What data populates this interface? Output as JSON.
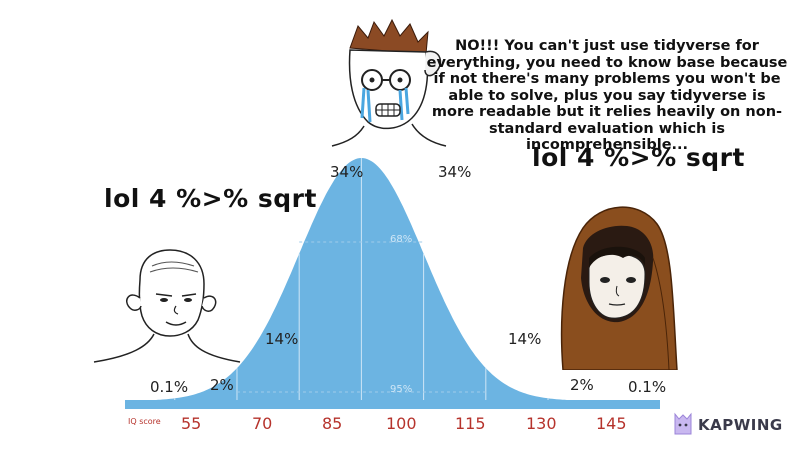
{
  "meme": {
    "speech": "NO!!! You can't just use tidyverse for everything, you need to know base because if not there's many problems you won't be able to solve, plus you say tidyverse is more readable but it relies heavily on non-standard evaluation which is incomprehensible...",
    "left_caption": "lol 4 %>% sqrt",
    "right_caption": "lol 4 %>% sqrt",
    "watermark": "KAPWING"
  },
  "chart_data": {
    "type": "area",
    "xlabel": "IQ score",
    "x_ticks": [
      55,
      70,
      85,
      100,
      115,
      130,
      145
    ],
    "percent_labels": [
      {
        "text": "0.1%",
        "region": "<55"
      },
      {
        "text": "2%",
        "region": "55-70"
      },
      {
        "text": "14%",
        "region": "70-85"
      },
      {
        "text": "34%",
        "region": "85-100"
      },
      {
        "text": "34%",
        "region": "100-115"
      },
      {
        "text": "14%",
        "region": "115-130"
      },
      {
        "text": "2%",
        "region": "130-145"
      },
      {
        "text": "0.1%",
        "region": ">145"
      }
    ],
    "inner_labels": [
      "68%",
      "95%"
    ],
    "mean": 100,
    "sd": 15,
    "colors": {
      "fill": "#6cb4e2",
      "tick": "#b6332c",
      "axis_band": "#6cb4e2"
    }
  }
}
